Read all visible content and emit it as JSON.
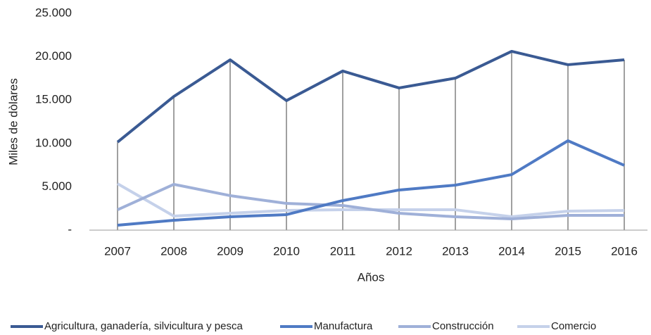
{
  "chart_data": {
    "type": "line",
    "y_label": "Miles de dòlares",
    "x_label": "Años",
    "categories": [
      "2007",
      "2008",
      "2009",
      "2010",
      "2011",
      "2012",
      "2013",
      "2014",
      "2015",
      "2016"
    ],
    "series": [
      {
        "name": "Agricultura, ganadería, silvicultura y pesca",
        "color": "#3a5a93",
        "values": [
          10150,
          15420,
          19640,
          14940,
          18350,
          16400,
          17530,
          20620,
          19080,
          19640
        ]
      },
      {
        "name": "Manufactura",
        "color": "#4f7ac4",
        "values": [
          570,
          1140,
          1540,
          1790,
          3410,
          4630,
          5190,
          6410,
          10310,
          7470
        ]
      },
      {
        "name": "Construcción",
        "color": "#9fb0d8",
        "values": [
          2350,
          5280,
          3980,
          3080,
          2840,
          1950,
          1540,
          1300,
          1700,
          1700
        ]
      },
      {
        "name": "Comercio",
        "color": "#c5d1ea",
        "values": [
          5360,
          1620,
          1950,
          2270,
          2350,
          2350,
          2350,
          1540,
          2190,
          2270
        ]
      }
    ],
    "ylim": [
      0,
      25000
    ],
    "yticks": [
      {
        "value": 0,
        "label": "-"
      },
      {
        "value": 5000,
        "label": "5.000"
      },
      {
        "value": 10000,
        "label": "10.000"
      },
      {
        "value": 15000,
        "label": "15.000"
      },
      {
        "value": 20000,
        "label": "20.000"
      },
      {
        "value": 25000,
        "label": "25.000"
      }
    ],
    "drop_lines": true,
    "legend": "bottom"
  }
}
